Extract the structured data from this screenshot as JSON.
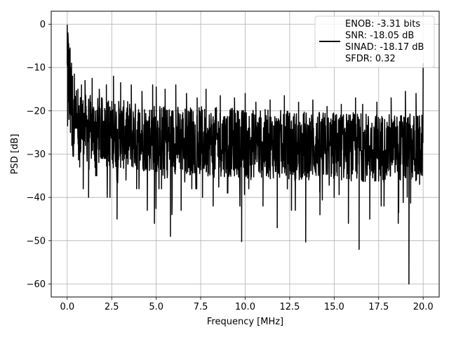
{
  "chart_data": {
    "type": "line",
    "xlabel": "Frequency [MHz]",
    "ylabel": "PSD [dB]",
    "xlim": [
      -0.9,
      20.9
    ],
    "ylim": [
      -63,
      3
    ],
    "xticks": [
      0.0,
      2.5,
      5.0,
      7.5,
      10.0,
      12.5,
      15.0,
      17.5,
      20.0
    ],
    "xtick_labels": [
      "0.0",
      "2.5",
      "5.0",
      "7.5",
      "10.0",
      "12.5",
      "15.0",
      "17.5",
      "20.0"
    ],
    "yticks": [
      0,
      -10,
      -20,
      -30,
      -40,
      -50,
      -60
    ],
    "ytick_labels": [
      "0",
      "−10",
      "−20",
      "−30",
      "−40",
      "−50",
      "−60"
    ],
    "grid": true,
    "legend_position": "top-right",
    "series": [
      {
        "color": "#000000",
        "x": [
          0.0,
          0.02,
          0.04,
          0.06,
          0.08,
          0.1,
          0.12,
          0.14,
          0.16,
          0.18,
          0.2,
          0.22,
          0.24,
          0.26,
          0.3,
          0.35,
          0.4,
          0.5,
          0.6,
          0.7,
          0.8,
          0.9,
          1.0,
          1.2,
          1.4,
          1.6,
          1.8,
          2.0,
          2.2,
          2.4,
          2.6,
          2.8,
          3.0,
          3.3,
          3.6,
          3.9,
          4.2,
          4.5,
          4.8,
          4.9,
          5.0,
          5.3,
          5.5,
          5.8,
          6.1,
          6.4,
          6.7,
          7.0,
          7.3,
          7.6,
          7.8,
          8.2,
          8.6,
          9.0,
          9.4,
          9.8,
          10.0,
          10.2,
          10.6,
          11.0,
          11.4,
          11.8,
          12.2,
          12.6,
          13.0,
          13.4,
          13.8,
          14.2,
          14.6,
          15.0,
          15.4,
          15.8,
          16.2,
          16.4,
          16.6,
          17.0,
          17.4,
          17.8,
          18.2,
          18.6,
          19.0,
          19.2,
          19.6,
          19.8,
          20.0
        ],
        "y": [
          -0.2,
          -23.5,
          -2.0,
          -12.0,
          -4.5,
          -22.0,
          -6.0,
          -18.0,
          -5.5,
          -25.0,
          -10.0,
          -21.0,
          -9.0,
          -28.0,
          -12.0,
          -30.5,
          -11.5,
          -24.0,
          -15.0,
          -33.0,
          -14.0,
          -38.0,
          -13.0,
          -40.0,
          -12.5,
          -35.0,
          -15.0,
          -31.0,
          -14.0,
          -40.0,
          -12.0,
          -45.0,
          -13.5,
          -36.0,
          -14.0,
          -38.0,
          -15.5,
          -43.0,
          -14.0,
          -46.0,
          -14.5,
          -38.0,
          -15.0,
          -49.0,
          -14.0,
          -43.0,
          -16.0,
          -38.0,
          -17.0,
          -40.0,
          -15.0,
          -42.0,
          -16.5,
          -39.0,
          -17.0,
          -50.2,
          -16.0,
          -38.0,
          -18.0,
          -42.0,
          -17.5,
          -47.0,
          -16.5,
          -43.0,
          -18.0,
          -50.3,
          -17.5,
          -44.0,
          -19.0,
          -40.0,
          -18.5,
          -46.0,
          -17.0,
          -52.0,
          -18.5,
          -45.0,
          -18.0,
          -42.0,
          -17.0,
          -46.0,
          -15.5,
          -60.0,
          -16.0,
          -37.0,
          -9.0
        ]
      }
    ],
    "legend": {
      "lines": [
        "ENOB: -3.31 bits",
        "SNR: -18.05 dB",
        "SINAD: -18.17 dB",
        "SFDR: 0.32"
      ]
    }
  }
}
